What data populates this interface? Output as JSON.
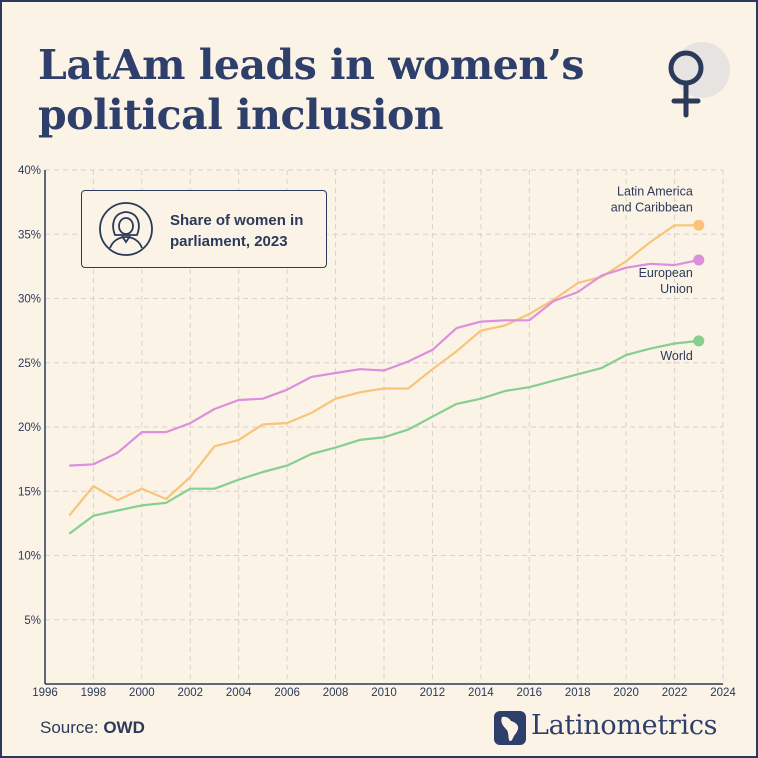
{
  "header": {
    "title_line1": "LatAm leads in women’s",
    "title_line2": "political inclusion"
  },
  "legend": {
    "line1": "Share of women in",
    "line2": "parliament, 2023"
  },
  "footer": {
    "source_prefix": "Source: ",
    "source_name": "OWD",
    "brand": "Latinometrics"
  },
  "icons": {
    "title_icon": "female-symbol-icon",
    "legend_icon": "woman-avatar-icon",
    "brand_icon": "latin-america-map-icon"
  },
  "colors": {
    "title": "#2f3f6b",
    "latam": "#f9c47a",
    "eu": "#dc8fdc",
    "world": "#86cf8e",
    "axis": "#2b3a5a",
    "grid": "#d6d2cf",
    "background": "#fbf3e6"
  },
  "chart_data": {
    "type": "line",
    "xlim": [
      1996,
      2024
    ],
    "ylim": [
      0,
      40
    ],
    "x_ticks": [
      1996,
      1998,
      2000,
      2002,
      2004,
      2006,
      2008,
      2010,
      2012,
      2014,
      2016,
      2018,
      2020,
      2022,
      2024
    ],
    "y_ticks": [
      5,
      10,
      15,
      20,
      25,
      30,
      35,
      40
    ],
    "y_tick_suffix": "%",
    "grid": true,
    "x": [
      1997,
      1998,
      1999,
      2000,
      2001,
      2002,
      2003,
      2004,
      2005,
      2006,
      2007,
      2008,
      2009,
      2010,
      2011,
      2012,
      2013,
      2014,
      2015,
      2016,
      2017,
      2018,
      2019,
      2020,
      2021,
      2022,
      2023
    ],
    "series": [
      {
        "name": "Latin America and Caribbean",
        "label_lines": [
          "Latin America",
          "and Caribbean"
        ],
        "color": "#f9c47a",
        "values": [
          13.1,
          15.4,
          14.3,
          15.2,
          14.4,
          16.1,
          18.5,
          19.0,
          20.2,
          20.3,
          21.1,
          22.2,
          22.7,
          23.0,
          23.0,
          24.5,
          25.9,
          27.5,
          27.9,
          28.8,
          29.9,
          31.2,
          31.7,
          32.9,
          34.4,
          35.7,
          35.7
        ]
      },
      {
        "name": "European Union",
        "label_lines": [
          "European",
          "Union"
        ],
        "color": "#dc8fdc",
        "values": [
          17.0,
          17.1,
          18.0,
          19.6,
          19.6,
          20.3,
          21.4,
          22.1,
          22.2,
          22.9,
          23.9,
          24.2,
          24.5,
          24.4,
          25.1,
          26.0,
          27.7,
          28.2,
          28.3,
          28.3,
          29.8,
          30.5,
          31.8,
          32.4,
          32.7,
          32.6,
          33.0
        ]
      },
      {
        "name": "World",
        "label_lines": [
          "World"
        ],
        "color": "#86cf8e",
        "values": [
          11.7,
          13.1,
          13.5,
          13.9,
          14.1,
          15.2,
          15.2,
          15.9,
          16.5,
          17.0,
          17.9,
          18.4,
          19.0,
          19.2,
          19.8,
          20.8,
          21.8,
          22.2,
          22.8,
          23.1,
          23.6,
          24.1,
          24.6,
          25.6,
          26.1,
          26.5,
          26.7
        ]
      }
    ]
  }
}
